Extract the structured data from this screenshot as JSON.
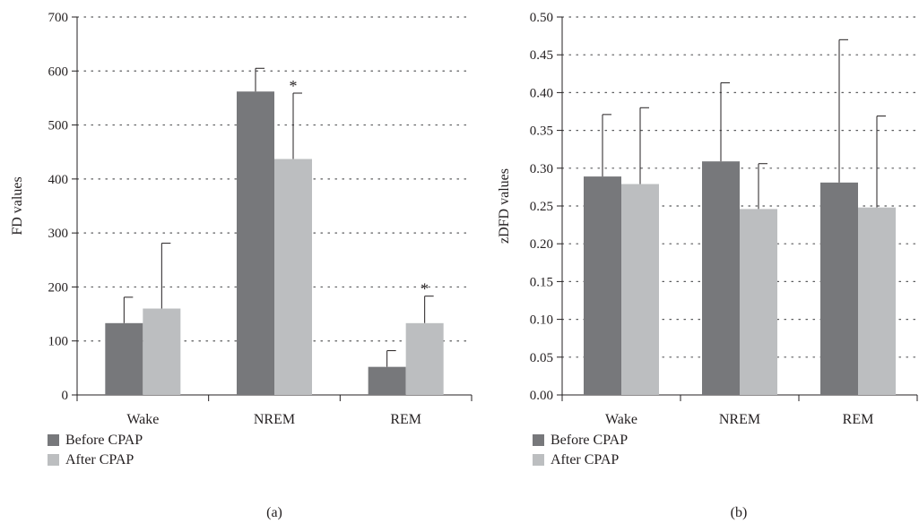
{
  "chart_data": [
    {
      "type": "bar",
      "panel_label": "(a)",
      "categories": [
        "Wake",
        "NREM",
        "REM"
      ],
      "series": [
        {
          "name": "Before CPAP",
          "color": "#77787b",
          "values": [
            133,
            562,
            52
          ],
          "error": [
            48,
            43,
            30
          ]
        },
        {
          "name": "After CPAP",
          "color": "#bcbec0",
          "values": [
            160,
            437,
            133
          ],
          "error": [
            121,
            122,
            50
          ]
        }
      ],
      "significance": [
        {
          "series": 1,
          "category": 1,
          "mark": "*"
        },
        {
          "series": 1,
          "category": 2,
          "mark": "*"
        }
      ],
      "ylabel": "FD values",
      "ylim": [
        0,
        700
      ],
      "yticks": [
        0,
        100,
        200,
        300,
        400,
        500,
        600,
        700
      ],
      "ytick_labels": [
        "0",
        "100",
        "200",
        "300",
        "400",
        "500",
        "600",
        "700"
      ],
      "grid": "dotted horizontal",
      "legend_position": "bottom-left"
    },
    {
      "type": "bar",
      "panel_label": "(b)",
      "categories": [
        "Wake",
        "NREM",
        "REM"
      ],
      "series": [
        {
          "name": "Before CPAP",
          "color": "#77787b",
          "values": [
            0.289,
            0.309,
            0.281
          ],
          "error": [
            0.082,
            0.104,
            0.189
          ]
        },
        {
          "name": "After CPAP",
          "color": "#bcbec0",
          "values": [
            0.279,
            0.246,
            0.248
          ],
          "error": [
            0.101,
            0.06,
            0.121
          ]
        }
      ],
      "significance": [],
      "ylabel": "zDFD values",
      "ylim": [
        0,
        0.5
      ],
      "yticks": [
        0,
        0.05,
        0.1,
        0.15,
        0.2,
        0.25,
        0.3,
        0.35,
        0.4,
        0.45,
        0.5
      ],
      "ytick_labels": [
        "0.00",
        "0.05",
        "0.10",
        "0.15",
        "0.20",
        "0.25",
        "0.30",
        "0.35",
        "0.40",
        "0.45",
        "0.50"
      ],
      "grid": "dotted horizontal",
      "legend_position": "bottom-left"
    }
  ]
}
